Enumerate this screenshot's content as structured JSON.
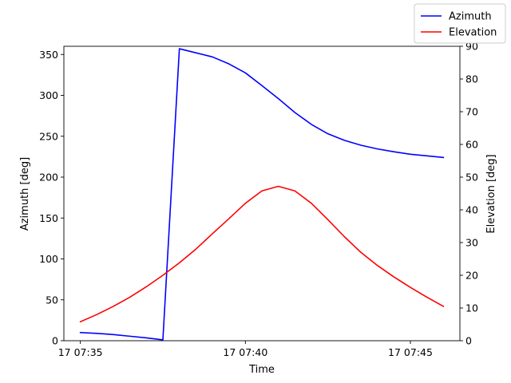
{
  "chart_data": {
    "type": "line",
    "xlabel": "Time",
    "ylabel_left": "Azimuth [deg]",
    "ylabel_right": "Elevation [deg]",
    "x_unit": "minutes",
    "x": [
      0,
      0.5,
      1,
      1.5,
      2,
      2.5,
      3,
      3.5,
      4,
      4.5,
      5,
      5.5,
      6,
      6.5,
      7,
      7.5,
      8,
      8.5,
      9,
      9.5,
      10,
      10.5,
      11
    ],
    "xlim": [
      -0.5,
      11.5
    ],
    "x_ticks": [
      0,
      5,
      10
    ],
    "x_tick_labels": [
      "17 07:35",
      "17 07:40",
      "17 07:45"
    ],
    "ylim_left": [
      0,
      360
    ],
    "y_ticks_left": [
      0,
      50,
      100,
      150,
      200,
      250,
      300,
      350
    ],
    "ylim_right": [
      0,
      90
    ],
    "y_ticks_right": [
      0,
      10,
      20,
      30,
      40,
      50,
      60,
      70,
      80,
      90
    ],
    "series": [
      {
        "name": "Azimuth",
        "axis": "left",
        "color": "#0000ff",
        "values": [
          10,
          9,
          7.5,
          5.5,
          3.5,
          1,
          357,
          352,
          347,
          338.5,
          327.5,
          312,
          296,
          279,
          264.5,
          253,
          245,
          239,
          234.5,
          231,
          228,
          226,
          224
        ]
      },
      {
        "name": "Elevation",
        "axis": "right",
        "color": "#ff0000",
        "values": [
          5.8,
          8,
          10.5,
          13.3,
          16.5,
          20,
          23.8,
          28,
          32.7,
          37.3,
          42,
          45.8,
          47.2,
          45.8,
          42,
          37,
          31.8,
          27,
          23,
          19.5,
          16.3,
          13.3,
          10.5
        ]
      }
    ],
    "legend_position": "top-right"
  }
}
